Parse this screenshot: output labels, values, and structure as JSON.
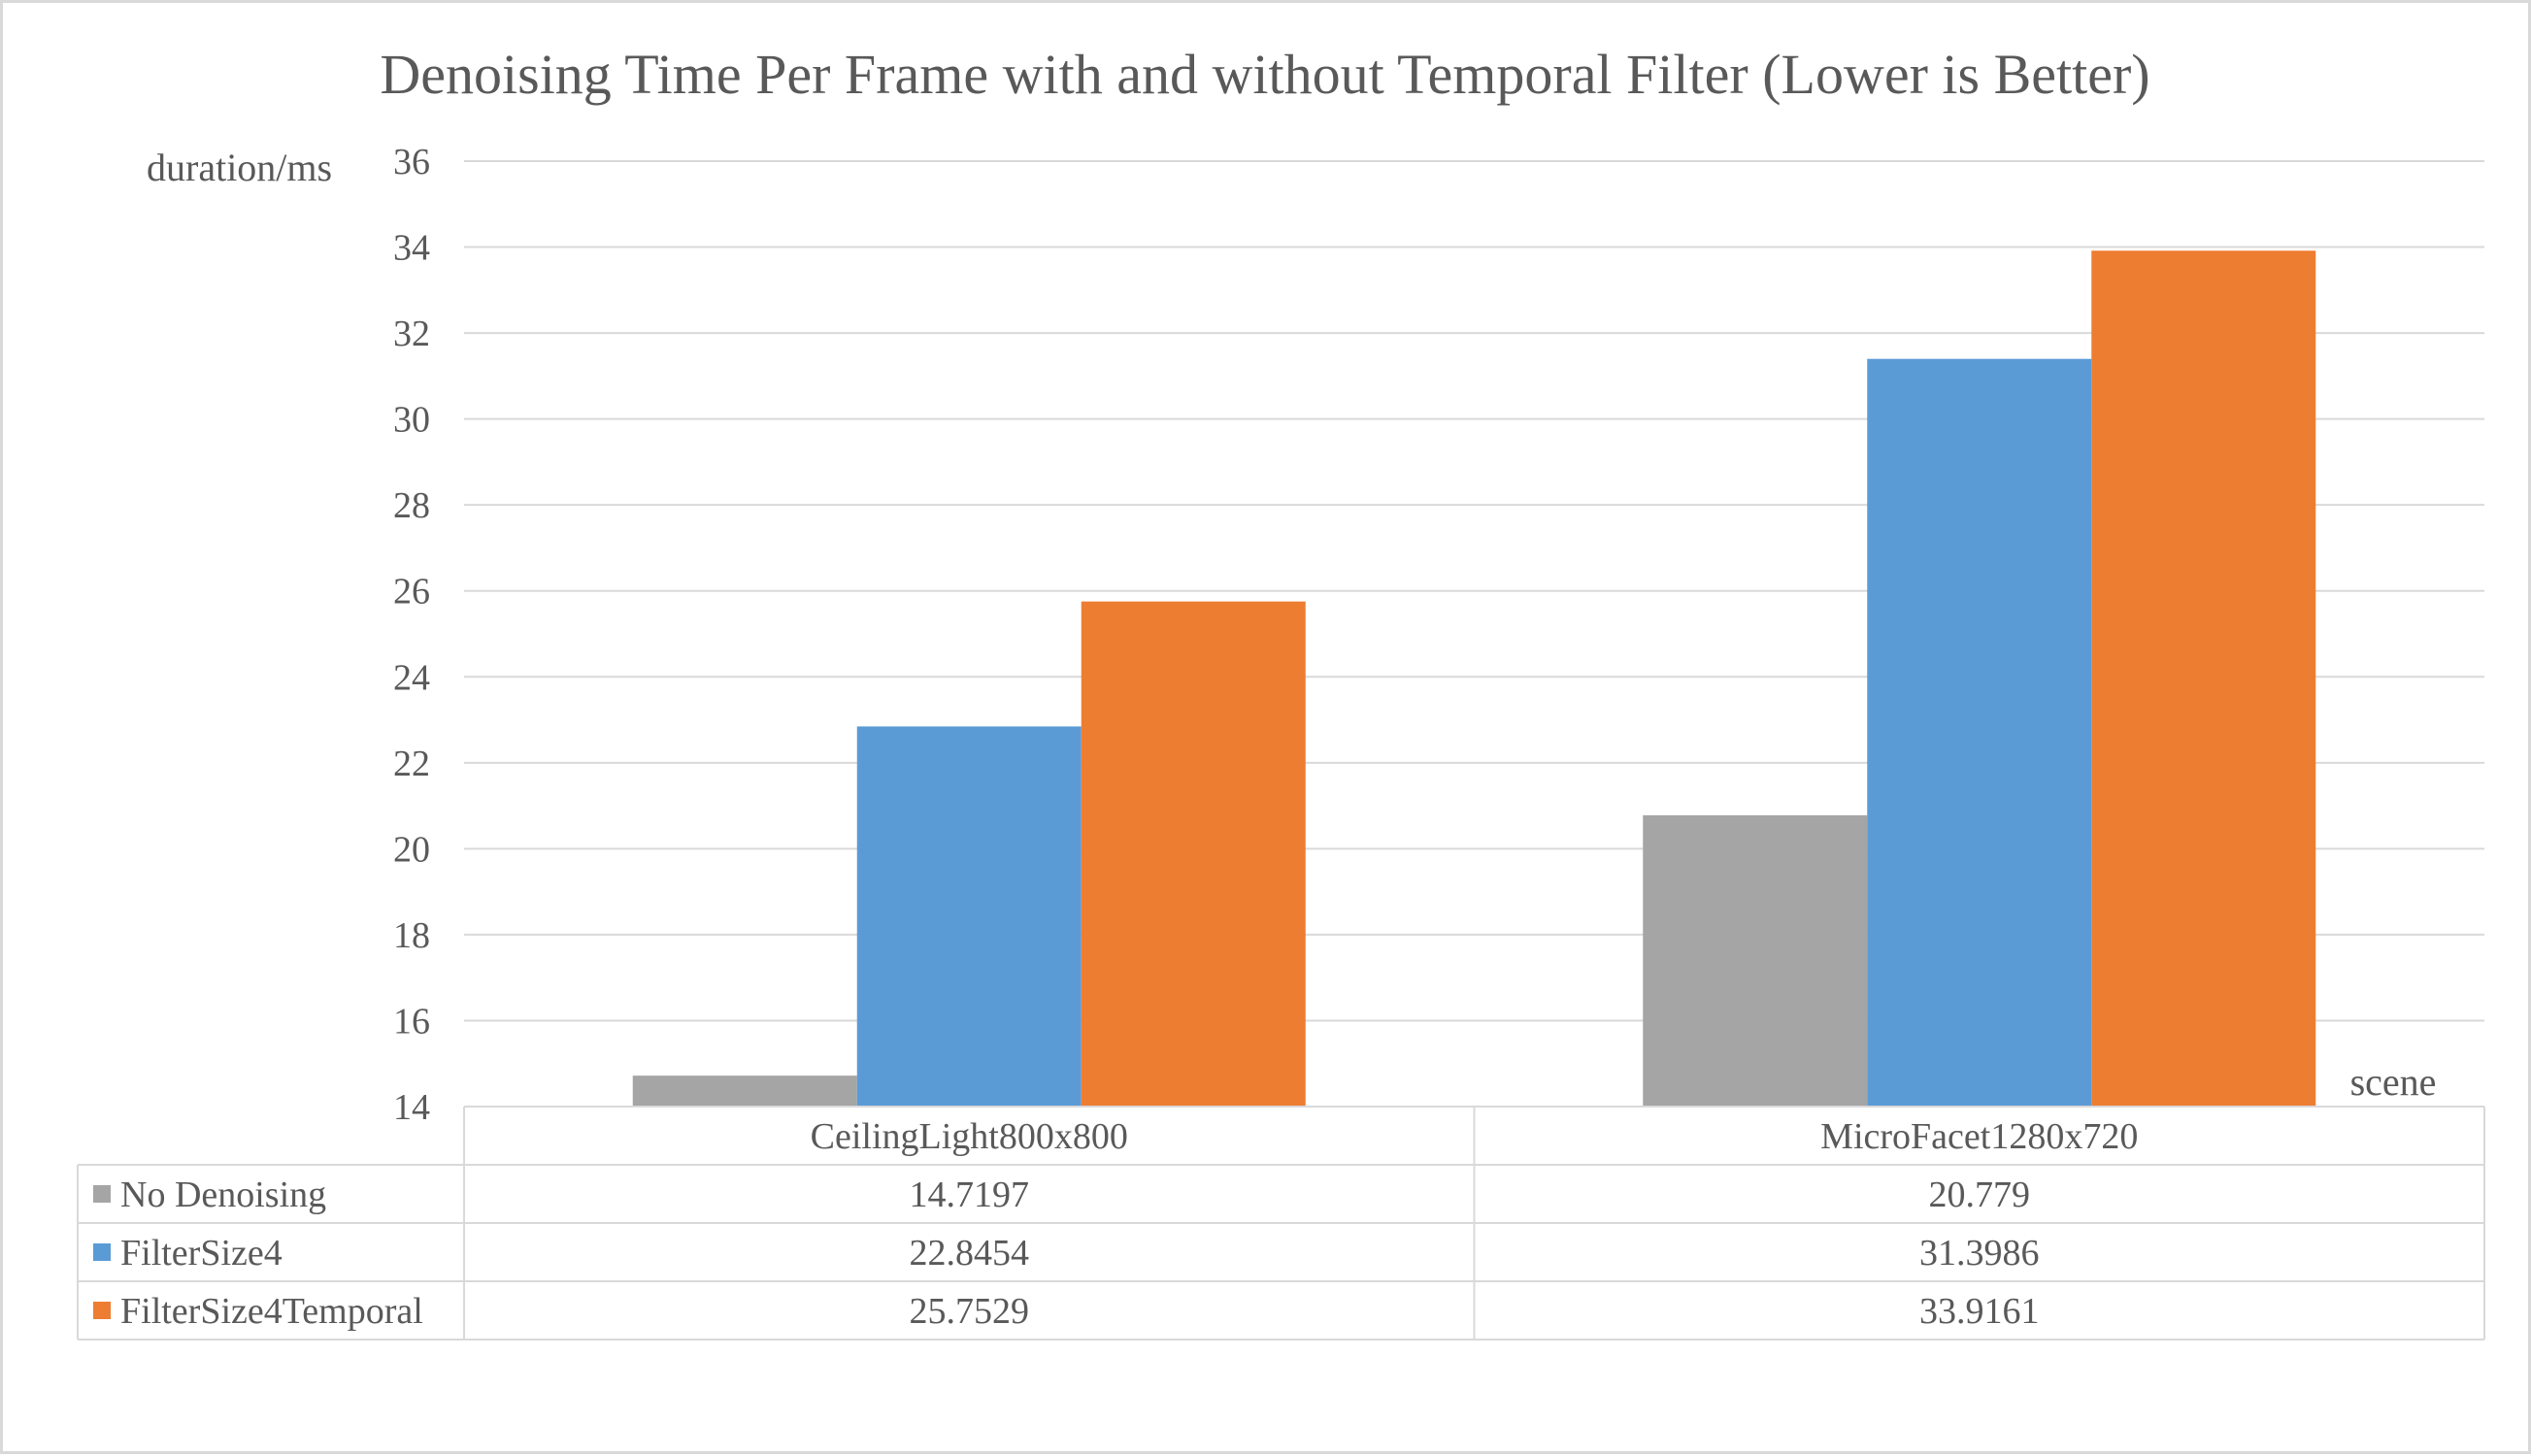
{
  "chart_data": {
    "type": "bar",
    "title": "Denoising Time Per Frame with and without Temporal Filter (Lower is Better)",
    "ylabel": "duration/ms",
    "xlabel": "scene",
    "ylim": [
      14,
      36
    ],
    "yticks": [
      14,
      16,
      18,
      20,
      22,
      24,
      26,
      28,
      30,
      32,
      34,
      36
    ],
    "grid": true,
    "legend": "data-table",
    "categories": [
      "CeilingLight800x800",
      "MicroFacet1280x720"
    ],
    "series": [
      {
        "name": "No Denoising",
        "color": "#a5a5a5",
        "values": [
          14.7197,
          20.779
        ],
        "labels": [
          "14.7197",
          "20.779"
        ]
      },
      {
        "name": "FilterSize4",
        "color": "#5b9bd5",
        "values": [
          22.8454,
          31.3986
        ],
        "labels": [
          "22.8454",
          "31.3986"
        ]
      },
      {
        "name": "FilterSize4Temporal",
        "color": "#ed7d31",
        "values": [
          25.7529,
          33.9161
        ],
        "labels": [
          "25.7529",
          "33.9161"
        ]
      }
    ]
  }
}
